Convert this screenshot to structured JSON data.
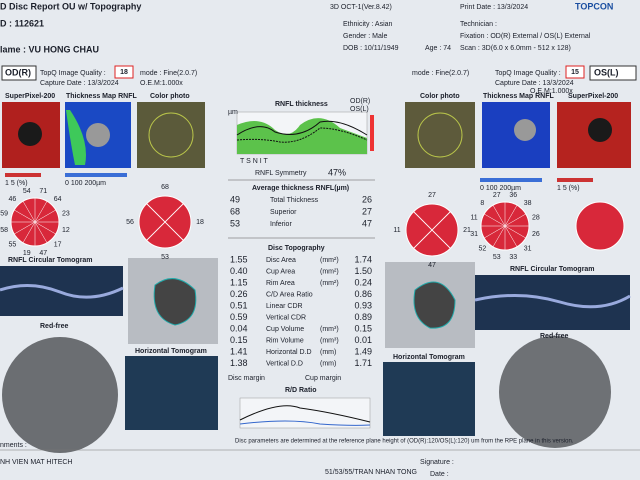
{
  "header": {
    "title": "D Disc Report OU w/ Topography",
    "device": "3D OCT-1(Ver.8.42)",
    "print_date": "Print Date : 13/3/2024",
    "brand": "TOPCON"
  },
  "patient": {
    "id": "D : 112621",
    "name": "lame : VU HONG CHAU",
    "ethnicity": "Ethnicity : Asian",
    "gender": "Gender : Male",
    "dob": "DOB : 10/11/1949",
    "age": "Age : 74",
    "technician": "Technician :",
    "fixation": "Fixation : OD(R) External / OS(L) External",
    "scan": "Scan : 3D(6.0 x 6.0mm - 512 x 128)"
  },
  "od": {
    "eye": "OD(R)",
    "quality_label": "TopQ Image Quality :",
    "quality": "18",
    "mode": "mode : Fine(2.0.7)",
    "capture": "Capture Date : 13/3/2024",
    "oem": "O.E.M:1.000x",
    "superpixel": "SuperPixel-200",
    "thickness_map": "Thickness Map RNFL",
    "color_photo": "Color photo",
    "scale_pct": "1   5   (%)",
    "scale_um": "0    100  200µm",
    "quadrants": {
      "S": "68",
      "T": "56",
      "N": "18",
      "I": "53"
    },
    "clock": [
      "71",
      "64",
      "23",
      "12",
      "17",
      "47",
      "19",
      "55",
      "58",
      "59",
      "46",
      "54"
    ],
    "circular_tomogram": "RNFL Circular Tomogram",
    "red_free": "Red-free",
    "horizontal_tomogram": "Horizontal Tomogram"
  },
  "os": {
    "eye": "OS(L)",
    "quality_label": "TopQ Image Quality :",
    "quality": "15",
    "mode": "mode : Fine(2.0.7)",
    "capture": "Capture Date : 13/3/2024",
    "oem": "O.E.M:1.000x",
    "superpixel": "SuperPixel-200",
    "thickness_map": "Thickness Map RNFL",
    "color_photo": "Color photo",
    "scale_pct": "1   5   (%)",
    "scale_um": "0    100  200µm",
    "quadrants": {
      "S": "27",
      "T": "21",
      "N": "11",
      "I": "47"
    },
    "clock": [
      "36",
      "38",
      "28",
      "26",
      "31",
      "33",
      "53",
      "52",
      "31",
      "11",
      "8",
      "27"
    ],
    "circular_tomogram": "RNFL Circular Tomogram",
    "red_free": "Red-free",
    "horizontal_tomogram": "Horizontal Tomogram"
  },
  "rnfl": {
    "title": "RNFL thickness",
    "legend_od": "OD(R)",
    "legend_os": "OS(L)",
    "axis": "T     S     N     I     T",
    "unit": "µm",
    "symmetry_label": "RNFL Symmetry",
    "symmetry": "47%",
    "avg_title": "Average thickness RNFL(µm)",
    "rows": [
      [
        "49",
        "Total Thickness",
        "26"
      ],
      [
        "68",
        "Superior",
        "27"
      ],
      [
        "53",
        "Inferior",
        "47"
      ]
    ]
  },
  "disc_topography": {
    "title": "Disc Topography",
    "rows": [
      [
        "1.55",
        "Disc Area",
        "(mm²)",
        "1.74"
      ],
      [
        "0.40",
        "Cup Area",
        "(mm²)",
        "1.50"
      ],
      [
        "1.15",
        "Rim Area",
        "(mm²)",
        "0.24"
      ],
      [
        "0.26",
        "C/D Area Ratio",
        "",
        "0.86"
      ],
      [
        "0.51",
        "Linear CDR",
        "",
        "0.93"
      ],
      [
        "0.59",
        "Vertical CDR",
        "",
        "0.89"
      ],
      [
        "0.04",
        "Cup Volume",
        "(mm³)",
        "0.15"
      ],
      [
        "0.15",
        "Rim Volume",
        "(mm³)",
        "0.01"
      ],
      [
        "1.41",
        "Horizontal D.D",
        "(mm)",
        "1.49"
      ],
      [
        "1.38",
        "Vertical D.D",
        "(mm)",
        "1.71"
      ]
    ],
    "disc_margin": "Disc margin",
    "cup_margin": "Cup margin",
    "rd_ratio": "R/D Ratio",
    "note": "Disc parameters are determined at the reference plane height of (OD(R):120/OS(L):120) um from the RPE plane in this version."
  },
  "footer": {
    "comments": "nments :",
    "clinic": "NH VIEN MAT HITECH",
    "address": "51/53/55/TRAN NHAN TONG",
    "signature": "Signature :",
    "date": "Date :"
  }
}
